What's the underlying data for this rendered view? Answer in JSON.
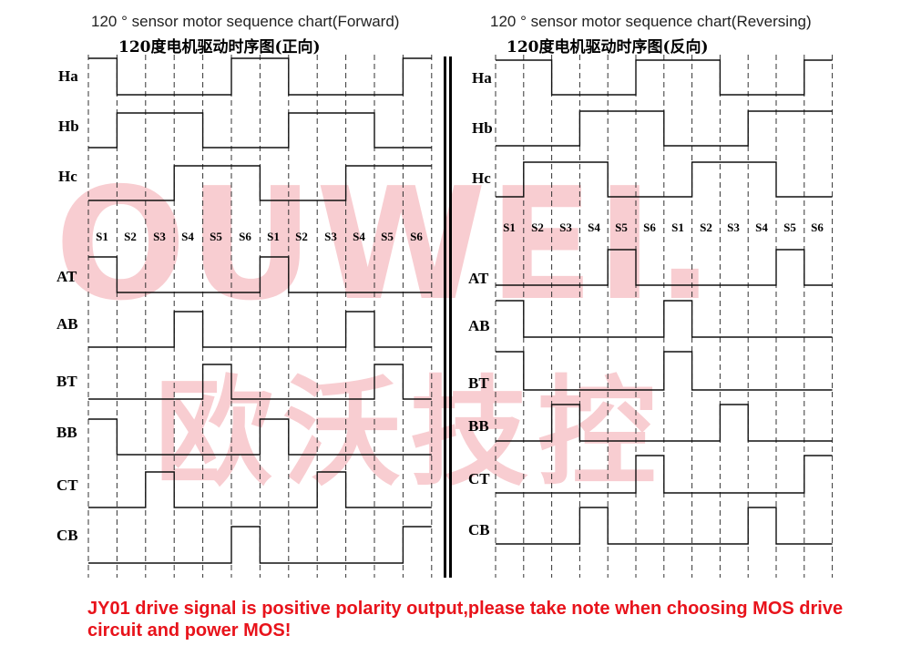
{
  "watermark": {
    "latin": "OUWEI.",
    "cjk": "欧沃技控"
  },
  "steps": [
    "S1",
    "S2",
    "S3",
    "S4",
    "S5",
    "S6",
    "S1",
    "S2",
    "S3",
    "S4",
    "S5",
    "S6"
  ],
  "signals": [
    "Ha",
    "Hb",
    "Hc",
    "AT",
    "AB",
    "BT",
    "BB",
    "CT",
    "CB"
  ],
  "panels": [
    {
      "id": "forward",
      "title": "120 ° sensor motor sequence chart(Forward)",
      "subtitle": "120度电机驱动时序图(正向)",
      "waveforms": {
        "Ha": [
          1,
          0,
          0,
          0,
          0,
          1,
          1,
          0,
          0,
          0,
          0,
          1
        ],
        "Hb": [
          0,
          1,
          1,
          1,
          0,
          0,
          0,
          1,
          1,
          1,
          0,
          0
        ],
        "Hc": [
          0,
          0,
          0,
          1,
          1,
          1,
          0,
          0,
          0,
          1,
          1,
          1
        ],
        "AT": [
          1,
          0,
          0,
          0,
          0,
          0,
          1,
          0,
          0,
          0,
          0,
          0
        ],
        "AB": [
          0,
          0,
          0,
          1,
          0,
          0,
          0,
          0,
          0,
          1,
          0,
          0
        ],
        "BT": [
          0,
          0,
          0,
          0,
          1,
          0,
          0,
          0,
          0,
          0,
          1,
          0
        ],
        "BB": [
          1,
          0,
          0,
          0,
          0,
          0,
          1,
          0,
          0,
          0,
          0,
          0
        ],
        "CT": [
          0,
          0,
          1,
          0,
          0,
          0,
          0,
          0,
          1,
          0,
          0,
          0
        ],
        "CB": [
          0,
          0,
          0,
          0,
          0,
          1,
          0,
          0,
          0,
          0,
          0,
          1
        ]
      }
    },
    {
      "id": "reversing",
      "title": "120 ° sensor motor sequence chart(Reversing)",
      "subtitle": "120度电机驱动时序图(反向)",
      "waveforms": {
        "Ha": [
          1,
          1,
          0,
          0,
          0,
          1,
          1,
          1,
          0,
          0,
          0,
          1
        ],
        "Hb": [
          0,
          0,
          0,
          1,
          1,
          1,
          0,
          0,
          0,
          1,
          1,
          1
        ],
        "Hc": [
          0,
          1,
          1,
          1,
          0,
          0,
          0,
          1,
          1,
          1,
          0,
          0
        ],
        "AT": [
          0,
          0,
          0,
          0,
          1,
          0,
          0,
          0,
          0,
          0,
          1,
          0
        ],
        "AB": [
          1,
          0,
          0,
          0,
          0,
          0,
          1,
          0,
          0,
          0,
          0,
          0
        ],
        "BT": [
          1,
          0,
          0,
          0,
          0,
          0,
          1,
          0,
          0,
          0,
          0,
          0
        ],
        "BB": [
          0,
          0,
          1,
          0,
          0,
          0,
          0,
          0,
          1,
          0,
          0,
          0
        ],
        "CT": [
          0,
          0,
          0,
          0,
          0,
          1,
          0,
          0,
          0,
          0,
          0,
          1
        ],
        "CB": [
          0,
          0,
          0,
          1,
          0,
          0,
          0,
          0,
          0,
          1,
          0,
          0
        ]
      }
    }
  ],
  "footer": "JY01 drive signal is positive polarity output,please take note when choosing MOS drive circuit and power MOS!"
}
